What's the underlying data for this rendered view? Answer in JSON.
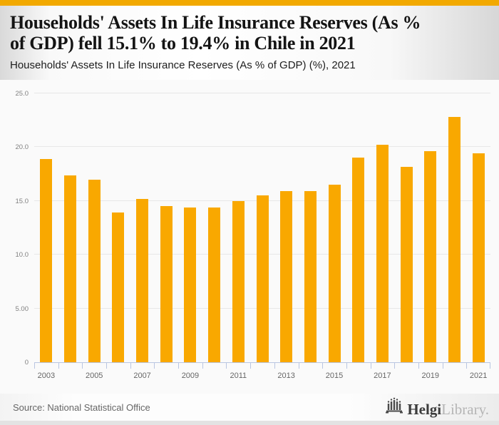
{
  "header": {
    "title_lines": [
      "Households' Assets In Life Insurance Reserves (As %",
      "of GDP) fell 15.1% to 19.4% in Chile in 2021"
    ],
    "subtitle": "Households' Assets In Life Insurance Reserves (As % of GDP) (%), 2021"
  },
  "chart_data": {
    "type": "bar",
    "title": "Households' Assets In Life Insurance Reserves (As % of GDP) fell 15.1% to 19.4% in Chile in 2021",
    "subtitle": "Households' Assets In Life Insurance Reserves (As % of GDP) (%), 2021",
    "categories": [
      2003,
      2004,
      2005,
      2006,
      2007,
      2008,
      2009,
      2010,
      2011,
      2012,
      2013,
      2014,
      2015,
      2016,
      2017,
      2018,
      2019,
      2020,
      2021
    ],
    "values": [
      18.9,
      17.4,
      17.0,
      13.9,
      15.2,
      14.5,
      14.4,
      14.4,
      15.0,
      15.5,
      15.9,
      15.9,
      16.5,
      19.0,
      20.2,
      18.2,
      19.6,
      22.8,
      19.4
    ],
    "xlabel": "",
    "ylabel": "",
    "ylim": [
      0,
      25
    ],
    "yticks": [
      {
        "value": 0,
        "label": "0"
      },
      {
        "value": 5,
        "label": "5.00"
      },
      {
        "value": 10,
        "label": "10.0"
      },
      {
        "value": 15,
        "label": "15.0"
      },
      {
        "value": 20,
        "label": "20.0"
      },
      {
        "value": 25,
        "label": "25.0"
      }
    ],
    "xtick_every": 2,
    "grid": true,
    "legend": false,
    "bar_color": "#F9A800"
  },
  "footer": {
    "source": "Source: National Statistical Office",
    "logo_bold": "Helgi",
    "logo_light": "Library."
  },
  "colors": {
    "top_strip": "#F2A900",
    "bar": "#F9A800",
    "chart_background": "#FAFAFA",
    "gridline": "#E7E7E7",
    "axis": "#B9C6E2",
    "bottom_strip": "#E3E3E3"
  }
}
